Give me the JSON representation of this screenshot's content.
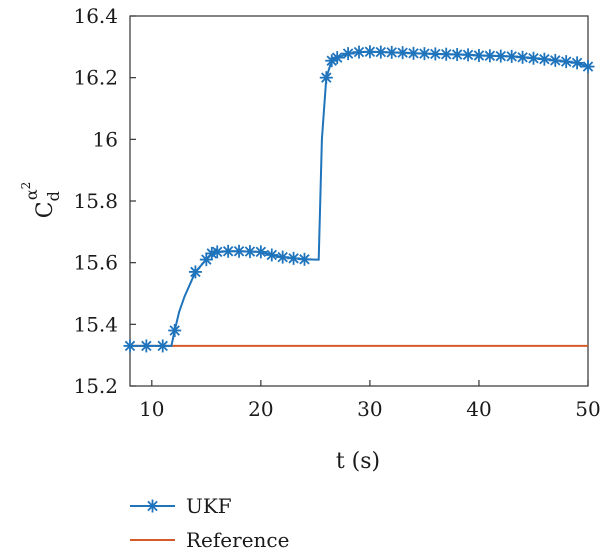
{
  "chart_data": {
    "type": "line",
    "title": "",
    "xlabel": "t (s)",
    "ylabel": {
      "base": "C",
      "sub": "d",
      "sup": "α",
      "sup_power": "2"
    },
    "xlim": [
      8,
      50
    ],
    "ylim": [
      15.2,
      16.4
    ],
    "xticks": [
      10,
      20,
      30,
      40,
      50
    ],
    "yticks": [
      15.2,
      15.4,
      15.6,
      15.8,
      16,
      16.2,
      16.4
    ],
    "ytick_labels": [
      "15.2",
      "15.4",
      "15.6",
      "15.8",
      "16",
      "16.2",
      "16.4"
    ],
    "grid": false,
    "legend_position": "below",
    "series": [
      {
        "name": "UKF",
        "color": "#1f74bc",
        "marker": "asterisk",
        "x": [
          8,
          9.5,
          11,
          11.8,
          12.1,
          12.5,
          13,
          13.5,
          14,
          14.5,
          15,
          15.5,
          16,
          17,
          18,
          19,
          20,
          21,
          22,
          23,
          24,
          25,
          25.3,
          25.6,
          26,
          26.5,
          27,
          28,
          29,
          30,
          31,
          32,
          33,
          34,
          35,
          36,
          37,
          38,
          39,
          40,
          41,
          42,
          43,
          44,
          45,
          46,
          47,
          48,
          49,
          50
        ],
        "y": [
          15.33,
          15.33,
          15.33,
          15.33,
          15.38,
          15.44,
          15.49,
          15.53,
          15.57,
          15.59,
          15.61,
          15.63,
          15.635,
          15.637,
          15.637,
          15.636,
          15.635,
          15.625,
          15.618,
          15.614,
          15.611,
          15.61,
          15.61,
          16.0,
          16.2,
          16.255,
          16.265,
          16.278,
          16.283,
          16.284,
          16.283,
          16.282,
          16.281,
          16.279,
          16.278,
          16.277,
          16.276,
          16.275,
          16.274,
          16.272,
          16.271,
          16.27,
          16.269,
          16.266,
          16.263,
          16.26,
          16.256,
          16.252,
          16.248,
          16.236
        ]
      },
      {
        "name": "Reference",
        "color": "#d55a2a",
        "x": [
          8,
          50
        ],
        "y": [
          15.33,
          15.33
        ]
      }
    ]
  }
}
